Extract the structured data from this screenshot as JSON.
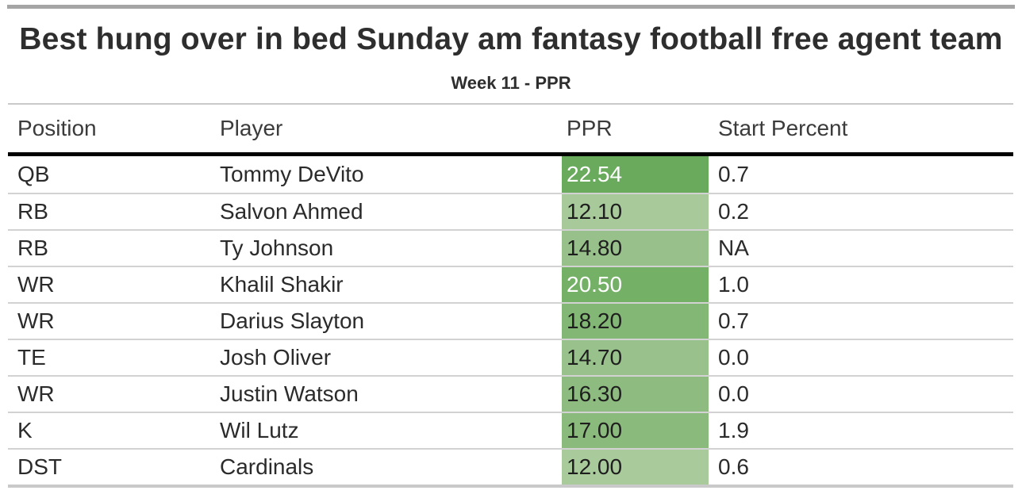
{
  "page": {
    "title": "Best hung over in bed Sunday am fantasy football free agent team",
    "subtitle": "Week 11 - PPR"
  },
  "colors": {
    "top_bar": "#a5a5a5",
    "header_rule": "#000000",
    "row_rule": "#d2d2d2",
    "outer_rule": "#c9c9c9",
    "ppr_scale_min": "#a9cb9c",
    "ppr_scale_max": "#69aa5c",
    "text_dark": "#2b2b2b",
    "text_on_dark_green": "#ffffff"
  },
  "table": {
    "columns": [
      "Position",
      "Player",
      "PPR",
      "Start Percent"
    ],
    "rows": [
      {
        "position": "QB",
        "player": "Tommy DeVito",
        "ppr": "22.54",
        "start_percent": "0.7",
        "ppr_bg": "#69aa5c",
        "ppr_fg": "#ffffff"
      },
      {
        "position": "RB",
        "player": "Salvon Ahmed",
        "ppr": "12.10",
        "start_percent": "0.2",
        "ppr_bg": "#a8ca9b",
        "ppr_fg": "#1e1e1e"
      },
      {
        "position": "RB",
        "player": "Ty Johnson",
        "ppr": "14.80",
        "start_percent": "NA",
        "ppr_bg": "#97c08a",
        "ppr_fg": "#1e1e1e"
      },
      {
        "position": "WR",
        "player": "Khalil Shakir",
        "ppr": "20.50",
        "start_percent": "1.0",
        "ppr_bg": "#74b066",
        "ppr_fg": "#ffffff"
      },
      {
        "position": "WR",
        "player": "Darius Slayton",
        "ppr": "18.20",
        "start_percent": "0.7",
        "ppr_bg": "#83b775",
        "ppr_fg": "#1e1e1e"
      },
      {
        "position": "TE",
        "player": "Josh Oliver",
        "ppr": "14.70",
        "start_percent": "0.0",
        "ppr_bg": "#98c18b",
        "ppr_fg": "#1e1e1e"
      },
      {
        "position": "WR",
        "player": "Justin Watson",
        "ppr": "16.30",
        "start_percent": "0.0",
        "ppr_bg": "#8ebc80",
        "ppr_fg": "#1e1e1e"
      },
      {
        "position": "K",
        "player": "Wil Lutz",
        "ppr": "17.00",
        "start_percent": "1.9",
        "ppr_bg": "#8bba7d",
        "ppr_fg": "#1e1e1e"
      },
      {
        "position": "DST",
        "player": "Cardinals",
        "ppr": "12.00",
        "start_percent": "0.6",
        "ppr_bg": "#a9cb9c",
        "ppr_fg": "#1e1e1e"
      }
    ]
  },
  "chart_data": {
    "type": "table",
    "title": "Best hung over in bed Sunday am fantasy football free agent team",
    "subtitle": "Week 11 - PPR",
    "columns": [
      "Position",
      "Player",
      "PPR",
      "Start Percent"
    ],
    "rows": [
      [
        "QB",
        "Tommy DeVito",
        22.54,
        "0.7"
      ],
      [
        "RB",
        "Salvon Ahmed",
        12.1,
        "0.2"
      ],
      [
        "RB",
        "Ty Johnson",
        14.8,
        "NA"
      ],
      [
        "WR",
        "Khalil Shakir",
        20.5,
        "1.0"
      ],
      [
        "WR",
        "Darius Slayton",
        18.2,
        "0.7"
      ],
      [
        "TE",
        "Josh Oliver",
        14.7,
        "0.0"
      ],
      [
        "WR",
        "Justin Watson",
        16.3,
        "0.0"
      ],
      [
        "K",
        "Wil Lutz",
        17.0,
        "1.9"
      ],
      [
        "DST",
        "Cardinals",
        12.0,
        "0.6"
      ]
    ],
    "conditional_format": {
      "column": "PPR",
      "style": "green gradient fill, darker = higher value, white text on darkest cells",
      "min_value": 12.0,
      "max_value": 22.54,
      "min_color": "#a9cb9c",
      "max_color": "#69aa5c"
    },
    "layout": {
      "grid": "horizontal rules only",
      "legend": "none"
    }
  }
}
